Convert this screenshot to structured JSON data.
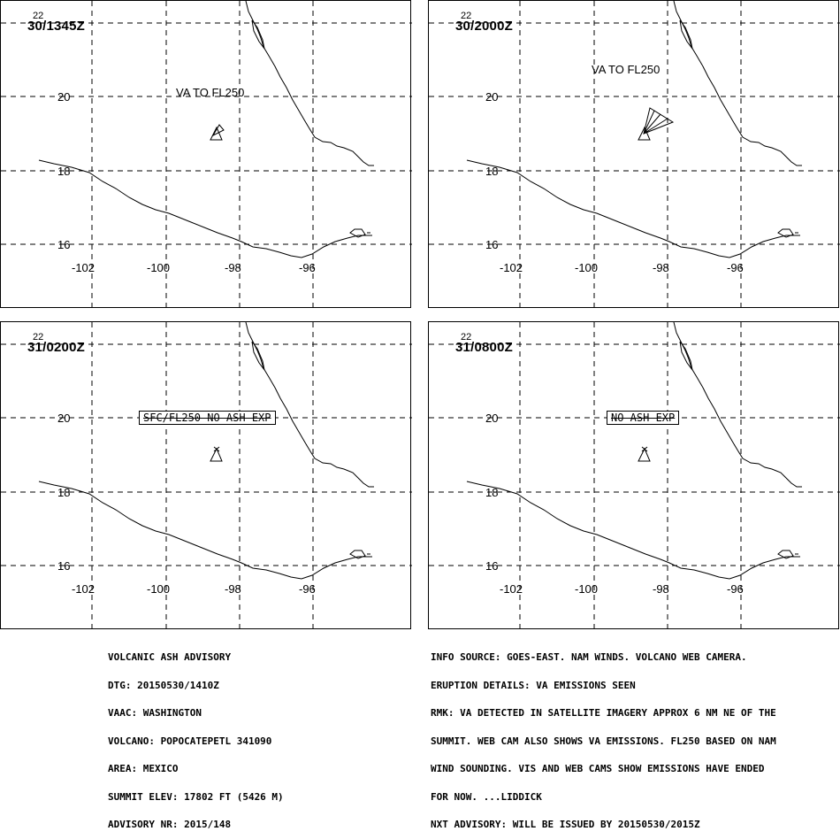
{
  "panels": [
    {
      "time": "30/1345Z",
      "label": "VA TO FL250",
      "boxed": false,
      "plume": "small"
    },
    {
      "time": "30/2000Z",
      "label": "VA TO FL250",
      "boxed": false,
      "plume": "large"
    },
    {
      "time": "31/0200Z",
      "label": "SFC/FL250 NO ASH EXP",
      "boxed": true,
      "plume": "none"
    },
    {
      "time": "31/0800Z",
      "label": "NO ASH EXP",
      "boxed": true,
      "plume": "none"
    }
  ],
  "axes": {
    "lon_ticks": [
      "-102",
      "-100",
      "-98",
      "-96"
    ],
    "lat_ticks": [
      "20",
      "18",
      "16"
    ],
    "top_lat_tick": "22"
  },
  "advisory_left": [
    "VOLCANIC ASH ADVISORY",
    "DTG: 20150530/1410Z",
    "VAAC: WASHINGTON",
    "VOLCANO: POPOCATEPETL 341090",
    "AREA: MEXICO",
    "SUMMIT ELEV: 17802 FT (5426 M)",
    "ADVISORY NR: 2015/148"
  ],
  "advisory_right": [
    "INFO SOURCE: GOES-EAST. NAM WINDS. VOLCANO WEB CAMERA.",
    "ERUPTION DETAILS: VA EMISSIONS SEEN",
    "RMK: VA DETECTED IN SATELLITE IMAGERY APPROX 6 NM NE OF THE",
    "SUMMIT. WEB CAM ALSO SHOWS VA EMISSIONS. FL250 BASED ON NAM",
    "WIND SOUNDING. VIS AND WEB CAMS SHOW EMISSIONS HAVE ENDED",
    "FOR NOW. ...LIDDICK",
    "NXT ADVISORY: WILL BE ISSUED BY 20150530/2015Z"
  ]
}
